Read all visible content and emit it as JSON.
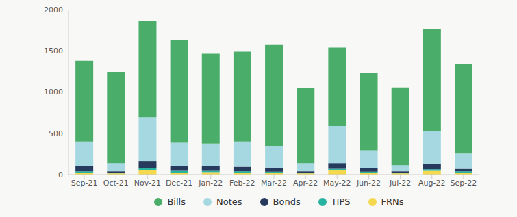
{
  "chart_data": {
    "type": "bar",
    "stacked": true,
    "grid": false,
    "legend": "bottom",
    "categories": [
      "Sep-21",
      "Oct-21",
      "Nov-21",
      "Dec-21",
      "Jan-22",
      "Feb-22",
      "Mar-22",
      "Apr-22",
      "May-22",
      "Jun-22",
      "Jul-22",
      "Aug-22",
      "Sep-22"
    ],
    "ylim": [
      0,
      2000
    ],
    "yticks": [
      0,
      500,
      1000,
      1500,
      2000
    ],
    "series": [
      {
        "name": "Bills",
        "color": "#4aad6a",
        "values": [
          980,
          1105,
          1170,
          1250,
          1090,
          1090,
          1225,
          905,
          950,
          940,
          940,
          1240,
          1085
        ]
      },
      {
        "name": "Notes",
        "color": "#a6d8e2",
        "values": [
          300,
          100,
          530,
          285,
          275,
          305,
          260,
          100,
          450,
          215,
          75,
          400,
          185
        ]
      },
      {
        "name": "Bonds",
        "color": "#263a5e",
        "values": [
          60,
          15,
          85,
          55,
          55,
          55,
          50,
          15,
          70,
          45,
          15,
          60,
          30
        ]
      },
      {
        "name": "TIPS",
        "color": "#27b3a0",
        "values": [
          20,
          10,
          30,
          25,
          15,
          20,
          15,
          10,
          20,
          15,
          10,
          20,
          20
        ]
      },
      {
        "name": "FRNs",
        "color": "#f4d84e",
        "values": [
          20,
          15,
          50,
          20,
          30,
          20,
          20,
          15,
          50,
          20,
          15,
          45,
          20
        ]
      }
    ]
  }
}
